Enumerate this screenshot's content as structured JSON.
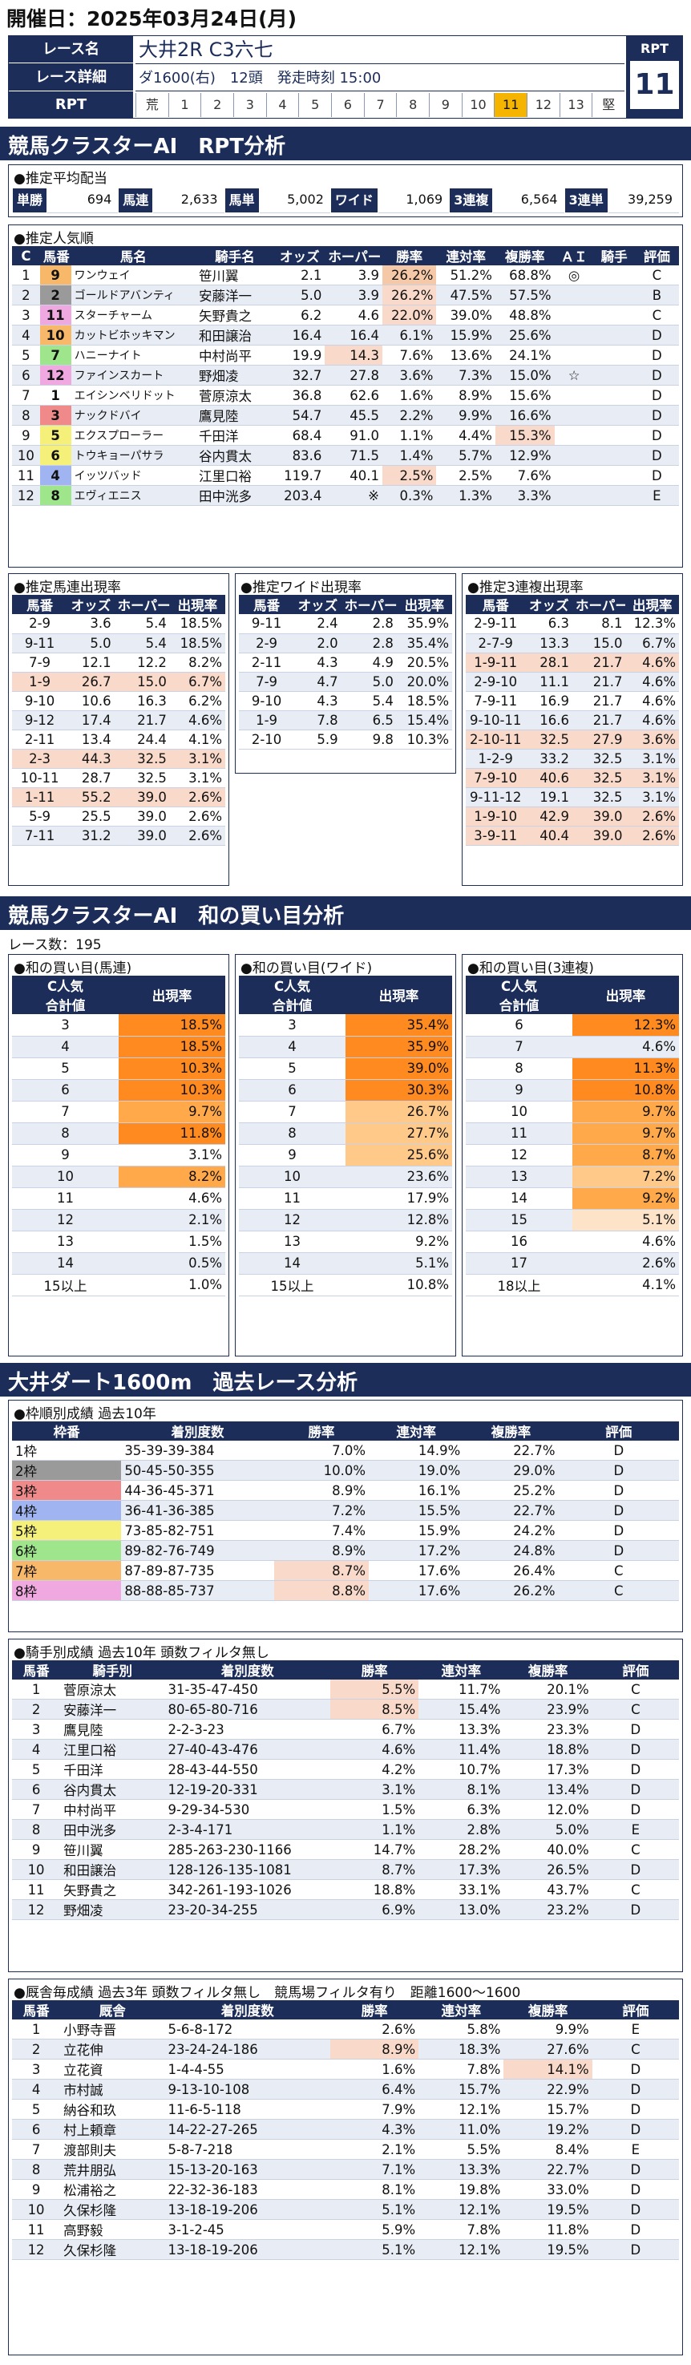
{
  "date_line": "開催日：2025年03月24日(月)",
  "race": {
    "name_label": "レース名",
    "name": "大井2R C3六七",
    "detail_label": "レース詳細",
    "detail": "ダ1600(右)　12頭　発走時刻 15:00",
    "rpt_label": "RPT",
    "cells": [
      "荒",
      "1",
      "2",
      "3",
      "4",
      "5",
      "6",
      "7",
      "8",
      "9",
      "10",
      "11",
      "12",
      "13",
      "堅"
    ],
    "highlight": "11",
    "rpt_box_label": "RPT",
    "rpt_value": "11"
  },
  "sec1_title": "競馬クラスターAI　RPT分析",
  "payout": {
    "caption": "●推定平均配当",
    "items": [
      [
        "単勝",
        "694"
      ],
      [
        "馬連",
        "2,633"
      ],
      [
        "馬単",
        "5,002"
      ],
      [
        "ワイド",
        "1,069"
      ],
      [
        "3連複",
        "6,564"
      ],
      [
        "3連単",
        "39,259"
      ]
    ]
  },
  "popular": {
    "caption": "●推定人気順",
    "headers": [
      "C",
      "馬番",
      "馬名",
      "騎手名",
      "オッズ",
      "ホーパー",
      "勝率",
      "連対率",
      "複勝率",
      "ＡＩ",
      "騎手",
      "評価"
    ],
    "rows": [
      [
        "1",
        "9",
        "ワンウェイ",
        "笹川翼",
        "2.1",
        "3.9",
        "26.2%",
        "51.2%",
        "68.8%",
        "◎",
        "",
        "C"
      ],
      [
        "2",
        "2",
        "ゴールドアバンティ",
        "安藤洋一",
        "5.0",
        "3.9",
        "26.2%",
        "47.5%",
        "57.5%",
        "",
        "",
        "B"
      ],
      [
        "3",
        "11",
        "スターチャーム",
        "矢野貴之",
        "6.2",
        "4.6",
        "22.0%",
        "39.0%",
        "48.8%",
        "",
        "",
        "C"
      ],
      [
        "4",
        "10",
        "カットビホッキマン",
        "和田譲治",
        "16.4",
        "16.4",
        "6.1%",
        "15.9%",
        "25.6%",
        "",
        "",
        "D"
      ],
      [
        "5",
        "7",
        "ハニーナイト",
        "中村尚平",
        "19.9",
        "14.3",
        "7.6%",
        "13.6%",
        "24.1%",
        "",
        "",
        "D"
      ],
      [
        "6",
        "12",
        "ファインスカート",
        "野畑凌",
        "32.7",
        "27.8",
        "3.6%",
        "7.3%",
        "15.0%",
        "☆",
        "",
        "D"
      ],
      [
        "7",
        "1",
        "エイシンベリドット",
        "菅原涼太",
        "36.8",
        "62.6",
        "1.6%",
        "8.9%",
        "15.6%",
        "",
        "",
        "D"
      ],
      [
        "8",
        "3",
        "ナックドバイ",
        "鷹見陸",
        "54.7",
        "45.5",
        "2.2%",
        "9.9%",
        "16.6%",
        "",
        "",
        "D"
      ],
      [
        "9",
        "5",
        "エクスプローラー",
        "千田洋",
        "68.4",
        "91.0",
        "1.1%",
        "4.4%",
        "15.3%",
        "",
        "",
        "D"
      ],
      [
        "10",
        "6",
        "トウキョーパサラ",
        "谷内貫太",
        "83.6",
        "71.5",
        "1.4%",
        "5.7%",
        "12.9%",
        "",
        "",
        "D"
      ],
      [
        "11",
        "4",
        "イッツバッド",
        "江里口裕",
        "119.7",
        "40.1",
        "2.5%",
        "2.5%",
        "7.6%",
        "",
        "",
        "D"
      ],
      [
        "12",
        "8",
        "エヴィエニス",
        "田中洸多",
        "203.4",
        "※",
        "0.3%",
        "1.3%",
        "3.3%",
        "",
        "",
        "E"
      ]
    ]
  },
  "umaren": {
    "caption": "●推定馬連出現率",
    "headers": [
      "馬番",
      "オッズ",
      "ホーパー",
      "出現率"
    ],
    "rows": [
      [
        "2-9",
        "3.6",
        "5.4",
        "18.5%"
      ],
      [
        "9-11",
        "5.0",
        "5.4",
        "18.5%"
      ],
      [
        "7-9",
        "12.1",
        "12.2",
        "8.2%"
      ],
      [
        "1-9",
        "26.7",
        "15.0",
        "6.7%"
      ],
      [
        "9-10",
        "10.6",
        "16.3",
        "6.2%"
      ],
      [
        "9-12",
        "17.4",
        "21.7",
        "4.6%"
      ],
      [
        "2-11",
        "13.4",
        "24.4",
        "4.1%"
      ],
      [
        "2-3",
        "44.3",
        "32.5",
        "3.1%"
      ],
      [
        "10-11",
        "28.7",
        "32.5",
        "3.1%"
      ],
      [
        "1-11",
        "55.2",
        "39.0",
        "2.6%"
      ],
      [
        "5-9",
        "25.5",
        "39.0",
        "2.6%"
      ],
      [
        "7-11",
        "31.2",
        "39.0",
        "2.6%"
      ]
    ]
  },
  "wide": {
    "caption": "●推定ワイド出現率",
    "headers": [
      "馬番",
      "オッズ",
      "ホーパー",
      "出現率"
    ],
    "rows": [
      [
        "9-11",
        "2.4",
        "2.8",
        "35.9%"
      ],
      [
        "2-9",
        "2.0",
        "2.8",
        "35.4%"
      ],
      [
        "2-11",
        "4.3",
        "4.9",
        "20.5%"
      ],
      [
        "7-9",
        "4.7",
        "5.0",
        "20.0%"
      ],
      [
        "9-10",
        "4.3",
        "5.4",
        "18.5%"
      ],
      [
        "1-9",
        "7.8",
        "6.5",
        "15.4%"
      ],
      [
        "2-10",
        "5.9",
        "9.8",
        "10.3%"
      ]
    ]
  },
  "trio": {
    "caption": "●推定3連複出現率",
    "headers": [
      "馬番",
      "オッズ",
      "ホーパー",
      "出現率"
    ],
    "rows": [
      [
        "2-9-11",
        "6.3",
        "8.1",
        "12.3%"
      ],
      [
        "2-7-9",
        "13.3",
        "15.0",
        "6.7%"
      ],
      [
        "1-9-11",
        "28.1",
        "21.7",
        "4.6%"
      ],
      [
        "2-9-10",
        "11.1",
        "21.7",
        "4.6%"
      ],
      [
        "7-9-11",
        "16.9",
        "21.7",
        "4.6%"
      ],
      [
        "9-10-11",
        "16.6",
        "21.7",
        "4.6%"
      ],
      [
        "2-10-11",
        "32.5",
        "27.9",
        "3.6%"
      ],
      [
        "1-2-9",
        "33.2",
        "32.5",
        "3.1%"
      ],
      [
        "7-9-10",
        "40.6",
        "32.5",
        "3.1%"
      ],
      [
        "9-11-12",
        "19.1",
        "32.5",
        "3.1%"
      ],
      [
        "1-9-10",
        "42.9",
        "39.0",
        "2.6%"
      ],
      [
        "3-9-11",
        "40.4",
        "39.0",
        "2.6%"
      ]
    ]
  },
  "sec2_title": "競馬クラスターAI　和の買い目分析",
  "race_count": "レース数：195",
  "sum_umaren": {
    "caption": "●和の買い目(馬連)",
    "h1": "C人気",
    "h2": "合計値",
    "h3": "出現率",
    "rows": [
      [
        "3",
        "18.5%"
      ],
      [
        "4",
        "18.5%"
      ],
      [
        "5",
        "10.3%"
      ],
      [
        "6",
        "10.3%"
      ],
      [
        "7",
        "9.7%"
      ],
      [
        "8",
        "11.8%"
      ],
      [
        "9",
        "3.1%"
      ],
      [
        "10",
        "8.2%"
      ],
      [
        "11",
        "4.6%"
      ],
      [
        "12",
        "2.1%"
      ],
      [
        "13",
        "1.5%"
      ],
      [
        "14",
        "0.5%"
      ],
      [
        "15以上",
        "1.0%"
      ]
    ]
  },
  "sum_wide": {
    "caption": "●和の買い目(ワイド)",
    "h1": "C人気",
    "h2": "合計値",
    "h3": "出現率",
    "rows": [
      [
        "3",
        "35.4%"
      ],
      [
        "4",
        "35.9%"
      ],
      [
        "5",
        "39.0%"
      ],
      [
        "6",
        "30.3%"
      ],
      [
        "7",
        "26.7%"
      ],
      [
        "8",
        "27.7%"
      ],
      [
        "9",
        "25.6%"
      ],
      [
        "10",
        "23.6%"
      ],
      [
        "11",
        "17.9%"
      ],
      [
        "12",
        "12.8%"
      ],
      [
        "13",
        "9.2%"
      ],
      [
        "14",
        "5.1%"
      ],
      [
        "15以上",
        "10.8%"
      ]
    ]
  },
  "sum_trio": {
    "caption": "●和の買い目(3連複)",
    "h1": "C人気",
    "h2": "合計値",
    "h3": "出現率",
    "rows": [
      [
        "6",
        "12.3%"
      ],
      [
        "7",
        "4.6%"
      ],
      [
        "8",
        "11.3%"
      ],
      [
        "9",
        "10.8%"
      ],
      [
        "10",
        "9.7%"
      ],
      [
        "11",
        "9.7%"
      ],
      [
        "12",
        "8.7%"
      ],
      [
        "13",
        "7.2%"
      ],
      [
        "14",
        "9.2%"
      ],
      [
        "15",
        "5.1%"
      ],
      [
        "16",
        "4.6%"
      ],
      [
        "17",
        "2.6%"
      ],
      [
        "18以上",
        "4.1%"
      ]
    ]
  },
  "sec3_title": "大井ダート1600m　過去レース分析",
  "frame": {
    "caption": "●枠順別成績 過去10年",
    "headers": [
      "枠番",
      "着別度数",
      "勝率",
      "連対率",
      "複勝率",
      "評価"
    ],
    "rows": [
      [
        "1枠",
        "35-39-39-384",
        "7.0%",
        "14.9%",
        "22.7%",
        "D"
      ],
      [
        "2枠",
        "50-45-50-355",
        "10.0%",
        "19.0%",
        "29.0%",
        "D"
      ],
      [
        "3枠",
        "44-36-45-371",
        "8.9%",
        "16.1%",
        "25.2%",
        "D"
      ],
      [
        "4枠",
        "36-41-36-385",
        "7.2%",
        "15.5%",
        "22.7%",
        "D"
      ],
      [
        "5枠",
        "73-85-82-751",
        "7.4%",
        "15.9%",
        "24.2%",
        "D"
      ],
      [
        "6枠",
        "89-82-76-749",
        "8.9%",
        "17.2%",
        "24.8%",
        "D"
      ],
      [
        "7枠",
        "87-89-87-735",
        "8.7%",
        "17.6%",
        "26.4%",
        "C"
      ],
      [
        "8枠",
        "88-88-85-737",
        "8.8%",
        "17.6%",
        "26.2%",
        "C"
      ]
    ]
  },
  "jockey": {
    "caption": "●騎手別成績 過去10年 頭数フィルタ無し",
    "headers": [
      "馬番",
      "騎手別",
      "着別度数",
      "勝率",
      "連対率",
      "複勝率",
      "評価"
    ],
    "rows": [
      [
        "1",
        "菅原涼太",
        "31-35-47-450",
        "5.5%",
        "11.7%",
        "20.1%",
        "C"
      ],
      [
        "2",
        "安藤洋一",
        "80-65-80-716",
        "8.5%",
        "15.4%",
        "23.9%",
        "C"
      ],
      [
        "3",
        "鷹見陸",
        "2-2-3-23",
        "6.7%",
        "13.3%",
        "23.3%",
        "D"
      ],
      [
        "4",
        "江里口裕",
        "27-40-43-476",
        "4.6%",
        "11.4%",
        "18.8%",
        "D"
      ],
      [
        "5",
        "千田洋",
        "28-43-44-550",
        "4.2%",
        "10.7%",
        "17.3%",
        "D"
      ],
      [
        "6",
        "谷内貫太",
        "12-19-20-331",
        "3.1%",
        "8.1%",
        "13.4%",
        "D"
      ],
      [
        "7",
        "中村尚平",
        "9-29-34-530",
        "1.5%",
        "6.3%",
        "12.0%",
        "D"
      ],
      [
        "8",
        "田中洸多",
        "2-3-4-171",
        "1.1%",
        "2.8%",
        "5.0%",
        "E"
      ],
      [
        "9",
        "笹川翼",
        "285-263-230-1166",
        "14.7%",
        "28.2%",
        "40.0%",
        "C"
      ],
      [
        "10",
        "和田譲治",
        "128-126-135-1081",
        "8.7%",
        "17.3%",
        "26.5%",
        "D"
      ],
      [
        "11",
        "矢野貴之",
        "342-261-193-1026",
        "18.8%",
        "33.1%",
        "43.7%",
        "C"
      ],
      [
        "12",
        "野畑凌",
        "23-20-34-255",
        "6.9%",
        "13.0%",
        "23.2%",
        "D"
      ]
    ]
  },
  "trainer": {
    "caption": "●厩舎毎成績 過去3年 頭数フィルタ無し　競馬場フィルタ有り　距離1600～1600",
    "headers": [
      "馬番",
      "厩舎",
      "着別度数",
      "勝率",
      "連対率",
      "複勝率",
      "評価"
    ],
    "rows": [
      [
        "1",
        "小野寺晋",
        "5-6-8-172",
        "2.6%",
        "5.8%",
        "9.9%",
        "E"
      ],
      [
        "2",
        "立花伸",
        "23-24-24-186",
        "8.9%",
        "18.3%",
        "27.6%",
        "C"
      ],
      [
        "3",
        "立花資",
        "1-4-4-55",
        "1.6%",
        "7.8%",
        "14.1%",
        "D"
      ],
      [
        "4",
        "市村誠",
        "9-13-10-108",
        "6.4%",
        "15.7%",
        "22.9%",
        "D"
      ],
      [
        "5",
        "納谷和玖",
        "11-6-5-118",
        "7.9%",
        "12.1%",
        "15.7%",
        "D"
      ],
      [
        "6",
        "村上頼章",
        "14-22-27-265",
        "4.3%",
        "11.0%",
        "19.2%",
        "D"
      ],
      [
        "7",
        "渡部則夫",
        "5-8-7-218",
        "2.1%",
        "5.5%",
        "8.4%",
        "E"
      ],
      [
        "8",
        "荒井朋弘",
        "15-13-20-163",
        "7.1%",
        "13.3%",
        "22.7%",
        "D"
      ],
      [
        "9",
        "松浦裕之",
        "22-32-36-183",
        "8.1%",
        "19.8%",
        "33.0%",
        "D"
      ],
      [
        "10",
        "久保杉隆",
        "13-18-19-206",
        "5.1%",
        "12.1%",
        "19.5%",
        "D"
      ],
      [
        "11",
        "高野毅",
        "3-1-2-45",
        "5.9%",
        "7.8%",
        "11.8%",
        "D"
      ],
      [
        "12",
        "久保杉隆",
        "13-18-19-206",
        "5.1%",
        "12.1%",
        "19.5%",
        "D"
      ]
    ]
  },
  "waku_colors": {
    "1": "#ffffff",
    "2": "#9a9a9a",
    "3": "#f08a8a",
    "4": "#9fb4f0",
    "5": "#f4f07a",
    "6": "#9fe58c",
    "7": "#f7b86a",
    "8": "#f0a8e0"
  }
}
